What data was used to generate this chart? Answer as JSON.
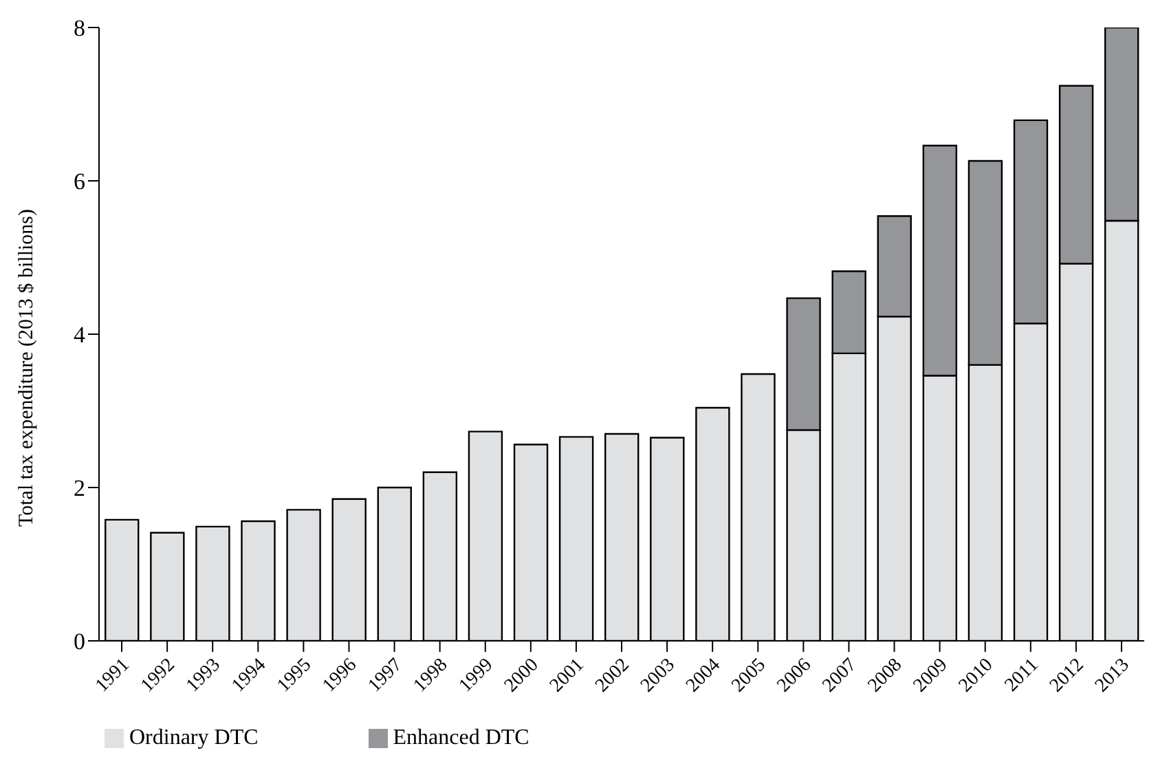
{
  "chart_data": {
    "type": "bar",
    "stacked": true,
    "ylabel": "Total tax expenditure (2013 $ billions)",
    "categories": [
      "1991",
      "1992",
      "1993",
      "1994",
      "1995",
      "1996",
      "1997",
      "1998",
      "1999",
      "2000",
      "2001",
      "2002",
      "2003",
      "2004",
      "2005",
      "2006",
      "2007",
      "2008",
      "2009",
      "2010",
      "2011",
      "2012",
      "2013"
    ],
    "series": [
      {
        "name": "Ordinary DTC",
        "color": "#e0e1e3",
        "values": [
          1.58,
          1.41,
          1.49,
          1.56,
          1.71,
          1.85,
          2.0,
          2.2,
          2.73,
          2.56,
          2.66,
          2.7,
          2.65,
          3.04,
          3.48,
          2.75,
          3.75,
          4.23,
          3.46,
          3.6,
          4.14,
          4.92,
          5.48
        ]
      },
      {
        "name": "Enhanced DTC",
        "color": "#959699",
        "values": [
          null,
          null,
          null,
          null,
          null,
          null,
          null,
          null,
          null,
          null,
          null,
          null,
          null,
          null,
          null,
          1.72,
          1.07,
          1.31,
          3.0,
          2.66,
          2.65,
          2.32,
          2.52
        ]
      }
    ],
    "ylim": [
      0,
      8
    ],
    "yticks": [
      0,
      2,
      4,
      6,
      8
    ],
    "legend": "bottom left",
    "grid": false
  }
}
